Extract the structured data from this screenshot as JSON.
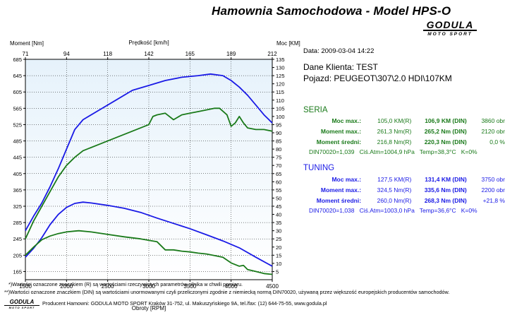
{
  "header": {
    "title": "Hamownia Samochodowa  -  Model HPS-O",
    "logo_main": "GODULA",
    "logo_sub": "MOTO SPORT"
  },
  "info": {
    "date": "Data: 2009-03-04  14:22",
    "client": "Dane Klienta: TEST",
    "vehicle": "Pojazd: PEUGEOT\\307\\2.0 HDI\\107KM"
  },
  "seria": {
    "heading": "SERIA",
    "rows": [
      {
        "label": "Moc max.:",
        "v1": "105,0 KM(R)",
        "v2": "106,9 KM (DIN)",
        "v3": "3860 obr"
      },
      {
        "label": "Moment max.:",
        "v1": "261,3 Nm(R)",
        "v2": "265,2 Nm (DIN)",
        "v3": "2120 obr"
      },
      {
        "label": "Moment średni:",
        "v1": "216,8 Nm(R)",
        "v2": "220,3 Nm (DIN)",
        "v3": "0,0 %"
      }
    ],
    "din": "DIN70020=1,039",
    "atm": "Ciś.Atm=1004,9 hPa",
    "temp": "Temp=38,3°C",
    "k": "K=0%"
  },
  "tuning": {
    "heading": "TUNING",
    "rows": [
      {
        "label": "Moc max.:",
        "v1": "127,5 KM(R)",
        "v2": "131,4 KM (DIN)",
        "v3": "3750 obr"
      },
      {
        "label": "Moment max.:",
        "v1": "324,5 Nm(R)",
        "v2": "335,6 Nm (DIN)",
        "v3": "2200 obr"
      },
      {
        "label": "Moment średni:",
        "v1": "260,0 Nm(R)",
        "v2": "268,3 Nm (DIN)",
        "v3": "+21,8 %"
      }
    ],
    "din": "DIN70020=1,038",
    "atm": "Ciś.Atm=1003,0 hPa",
    "temp": "Temp=36,6°C",
    "k": "K=0%"
  },
  "footer": {
    "note1": "*)Wartości oznaczone znaczkiem (R) są wartościami rzeczywistych parametrów silnika w chwili pomiaru.",
    "note2": "**)Wartości oznaczone znaczkiem (DIN) są wartościami unormowanymi czyli przeliczonymi zgodnie z niemiecką normą DIN70020, używaną przez większość europejskich producentów samochodów.",
    "producer": "Producent Hamowni: GODULA MOTO SPORT Kraków 31-752, ul. Makuszyńskiego 9A, tel./fax: (12) 644-75-55, www.godula.pl",
    "logo_main": "GODULA",
    "logo_sub": "MOTO SPORT"
  },
  "colors": {
    "seria": "#1a7a1a",
    "tuning": "#1a1ae6",
    "grid": "#000000",
    "plot_bg_top": "#e6f2fb"
  },
  "chart_data": {
    "type": "line",
    "xlabel": "Obroty [RPM]",
    "x_ticks": [
      1500,
      2000,
      2500,
      3000,
      3500,
      4000,
      4500
    ],
    "xlim": [
      1500,
      4500
    ],
    "top_axis_label": "Prędkość [km/h]",
    "top_ticks": [
      "71",
      "94",
      "118",
      "142",
      "165",
      "189",
      "212"
    ],
    "left_axis_label": "Moment [Nm]",
    "left_ticks": [
      165,
      205,
      245,
      285,
      325,
      365,
      405,
      445,
      485,
      525,
      565,
      605,
      645,
      685
    ],
    "left_lim": [
      145,
      685
    ],
    "right_axis_label": "Moc [KM]",
    "right_ticks": [
      5,
      10,
      15,
      20,
      25,
      30,
      35,
      40,
      45,
      50,
      55,
      60,
      65,
      70,
      75,
      80,
      85,
      90,
      95,
      100,
      105,
      110,
      115,
      120,
      125,
      130,
      135
    ],
    "right_lim": [
      0,
      135
    ],
    "grid": true,
    "series": [
      {
        "name": "TUNING",
        "quantity": "power",
        "axis": "right",
        "color": "#1a1ae6",
        "x": [
          1500,
          1600,
          1700,
          1800,
          1900,
          2000,
          2100,
          2200,
          2400,
          2600,
          2800,
          3000,
          3200,
          3400,
          3600,
          3750,
          3900,
          4000,
          4100,
          4200,
          4300,
          4400,
          4500
        ],
        "y": [
          30,
          39,
          47,
          57,
          68,
          80,
          92,
          98,
          104,
          110,
          116,
          119,
          122,
          124,
          125,
          126,
          125,
          122,
          118,
          113,
          107,
          101,
          96
        ]
      },
      {
        "name": "SERIA",
        "quantity": "power",
        "axis": "right",
        "color": "#1a7a1a",
        "x": [
          1500,
          1600,
          1700,
          1800,
          1900,
          2000,
          2100,
          2200,
          2400,
          2600,
          2800,
          3000,
          3050,
          3100,
          3200,
          3300,
          3400,
          3500,
          3600,
          3700,
          3800,
          3860,
          3950,
          4000,
          4050,
          4100,
          4150,
          4200,
          4300,
          4400,
          4500
        ],
        "y": [
          25,
          36,
          45,
          54,
          63,
          70,
          75,
          79,
          83,
          87,
          91,
          95,
          100,
          101,
          102,
          98,
          101,
          102,
          103,
          104,
          105,
          105,
          101,
          94,
          96,
          100,
          96,
          93,
          92,
          92,
          91
        ]
      },
      {
        "name": "TUNING",
        "quantity": "torque",
        "axis": "left",
        "color": "#1a1ae6",
        "x": [
          1500,
          1600,
          1700,
          1800,
          1900,
          2000,
          2100,
          2200,
          2300,
          2500,
          2700,
          2900,
          3100,
          3300,
          3500,
          3700,
          3900,
          4100,
          4300,
          4500
        ],
        "y": [
          200,
          222,
          248,
          280,
          305,
          322,
          332,
          335,
          333,
          327,
          320,
          310,
          296,
          283,
          270,
          255,
          240,
          223,
          200,
          178
        ]
      },
      {
        "name": "SERIA",
        "quantity": "torque",
        "axis": "left",
        "color": "#1a7a1a",
        "x": [
          1500,
          1600,
          1700,
          1800,
          1900,
          2000,
          2100,
          2150,
          2300,
          2500,
          2700,
          2900,
          3100,
          3200,
          3300,
          3400,
          3500,
          3600,
          3700,
          3800,
          3900,
          4000,
          4100,
          4150,
          4200,
          4300,
          4400,
          4500
        ],
        "y": [
          205,
          225,
          243,
          252,
          258,
          262,
          264,
          265,
          262,
          256,
          250,
          245,
          238,
          218,
          218,
          215,
          213,
          210,
          208,
          204,
          200,
          186,
          178,
          180,
          170,
          165,
          160,
          158
        ]
      }
    ]
  }
}
